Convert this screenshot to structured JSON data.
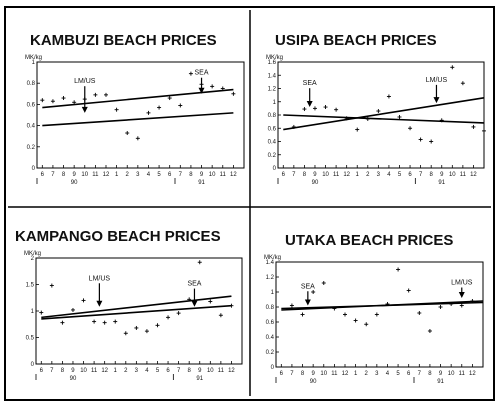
{
  "chart_data": [
    {
      "type": "scatter",
      "title": "KAMBUZI BEACH PRICES",
      "ylabel": "MK/kg",
      "ylim": [
        0,
        1
      ],
      "y_ticks": [
        "0",
        "0.2",
        "0.4",
        "0.6",
        "0.8",
        "1"
      ],
      "x_ticks": [
        "6",
        "7",
        "8",
        "9",
        "10",
        "11",
        "12",
        "1",
        "2",
        "3",
        "4",
        "5",
        "6",
        "7",
        "8",
        "9",
        "10",
        "11",
        "12"
      ],
      "years": [
        {
          "label": "90",
          "x": 9
        },
        {
          "label": "91",
          "x": 21
        }
      ],
      "year_dividers": [
        1,
        13
      ],
      "points": [
        [
          6,
          0.64
        ],
        [
          7,
          0.63
        ],
        [
          8,
          0.66
        ],
        [
          9,
          0.62
        ],
        [
          10,
          0.65
        ],
        [
          11,
          0.69
        ],
        [
          12,
          0.69
        ],
        [
          13,
          0.55
        ],
        [
          14,
          0.33
        ],
        [
          15,
          0.28
        ],
        [
          16,
          0.52
        ],
        [
          17,
          0.57
        ],
        [
          18,
          0.66
        ],
        [
          19,
          0.59
        ],
        [
          20,
          0.89
        ],
        [
          21,
          0.79
        ],
        [
          22,
          0.77
        ],
        [
          23,
          0.75
        ],
        [
          24,
          0.7
        ]
      ],
      "trend_lines": [
        {
          "x": [
            6,
            24
          ],
          "y": [
            0.57,
            0.74
          ]
        },
        {
          "x": [
            6,
            24
          ],
          "y": [
            0.4,
            0.52
          ]
        }
      ],
      "annotations": [
        {
          "text": "LM/US",
          "x": 10,
          "y_text": 0.8,
          "y_tip": 0.52
        },
        {
          "text": "SEA",
          "x": 21,
          "y_text": 0.88,
          "y_tip": 0.7
        }
      ]
    },
    {
      "type": "scatter",
      "title": "USIPA BEACH PRICES",
      "ylabel": "MK/kg",
      "ylim": [
        0,
        1.6
      ],
      "y_ticks": [
        "0",
        "0.2",
        "0.4",
        "0.6",
        "0.8",
        "1",
        "1.2",
        "1.4",
        "1.6"
      ],
      "x_ticks": [
        "6",
        "7",
        "8",
        "9",
        "10",
        "11",
        "12",
        "1",
        "2",
        "3",
        "4",
        "5",
        "6",
        "7",
        "8",
        "9",
        "10",
        "11",
        "12"
      ],
      "years": [
        {
          "label": "90",
          "x": 9
        },
        {
          "label": "91",
          "x": 21
        }
      ],
      "year_dividers": [
        1,
        13
      ],
      "points": [
        [
          7,
          0.62
        ],
        [
          8,
          0.89
        ],
        [
          9,
          0.9
        ],
        [
          10,
          0.92
        ],
        [
          11,
          0.88
        ],
        [
          12,
          0.75
        ],
        [
          13,
          0.58
        ],
        [
          14,
          0.74
        ],
        [
          15,
          0.86
        ],
        [
          16,
          1.08
        ],
        [
          17,
          0.77
        ],
        [
          18,
          0.6
        ],
        [
          19,
          0.43
        ],
        [
          20,
          0.4
        ],
        [
          21,
          0.72
        ],
        [
          22,
          1.52
        ],
        [
          23,
          1.28
        ],
        [
          24,
          0.62
        ],
        [
          25,
          0.56
        ]
      ],
      "trend_lines": [
        {
          "x": [
            6,
            25
          ],
          "y": [
            0.58,
            1.06
          ]
        },
        {
          "x": [
            6,
            25
          ],
          "y": [
            0.8,
            0.68
          ]
        }
      ],
      "annotations": [
        {
          "text": "SEA",
          "x": 8.5,
          "y_text": 1.25,
          "y_tip": 0.92
        },
        {
          "text": "LM/US",
          "x": 20.5,
          "y_text": 1.3,
          "y_tip": 0.98
        }
      ]
    },
    {
      "type": "scatter",
      "title": "KAMPANGO BEACH PRICES",
      "ylabel": "MK/kg",
      "ylim": [
        0,
        2
      ],
      "y_ticks": [
        "0",
        "0.5",
        "1",
        "1.5",
        "2"
      ],
      "x_ticks": [
        "6",
        "7",
        "8",
        "9",
        "10",
        "11",
        "12",
        "1",
        "2",
        "3",
        "4",
        "5",
        "6",
        "7",
        "8",
        "9",
        "10",
        "11",
        "12"
      ],
      "years": [
        {
          "label": "90",
          "x": 9
        },
        {
          "label": "91",
          "x": 21
        }
      ],
      "year_dividers": [
        1,
        13
      ],
      "points": [
        [
          6,
          0.97
        ],
        [
          7,
          1.48
        ],
        [
          8,
          0.78
        ],
        [
          9,
          1.02
        ],
        [
          10,
          1.2
        ],
        [
          11,
          0.8
        ],
        [
          12,
          0.78
        ],
        [
          13,
          0.8
        ],
        [
          14,
          0.58
        ],
        [
          15,
          0.68
        ],
        [
          16,
          0.62
        ],
        [
          17,
          0.73
        ],
        [
          18,
          0.88
        ],
        [
          19,
          0.96
        ],
        [
          20,
          1.22
        ],
        [
          21,
          1.92
        ],
        [
          22,
          1.18
        ],
        [
          23,
          0.92
        ],
        [
          24,
          1.1
        ]
      ],
      "trend_lines": [
        {
          "x": [
            6,
            24
          ],
          "y": [
            0.88,
            1.28
          ]
        },
        {
          "x": [
            6,
            24
          ],
          "y": [
            0.85,
            1.1
          ]
        }
      ],
      "annotations": [
        {
          "text": "LM/US",
          "x": 11.5,
          "y_text": 1.58,
          "y_tip": 1.08
        },
        {
          "text": "SEA",
          "x": 20.5,
          "y_text": 1.48,
          "y_tip": 1.08
        }
      ]
    },
    {
      "type": "scatter",
      "title": "UTAKA BEACH PRICES",
      "ylabel": "MK/kg",
      "ylim": [
        0,
        1.4
      ],
      "y_ticks": [
        "0",
        "0.2",
        "0.4",
        "0.6",
        "0.8",
        "1",
        "1.2",
        "1.4"
      ],
      "x_ticks": [
        "6",
        "7",
        "8",
        "9",
        "10",
        "11",
        "12",
        "1",
        "2",
        "3",
        "4",
        "5",
        "6",
        "7",
        "8",
        "9",
        "10",
        "11",
        "12"
      ],
      "years": [
        {
          "label": "90",
          "x": 9
        },
        {
          "label": "91",
          "x": 21
        }
      ],
      "year_dividers": [
        1,
        13
      ],
      "points": [
        [
          7,
          0.82
        ],
        [
          8,
          0.7
        ],
        [
          9,
          1.0
        ],
        [
          10,
          1.12
        ],
        [
          11,
          0.78
        ],
        [
          12,
          0.7
        ],
        [
          13,
          0.62
        ],
        [
          14,
          0.57
        ],
        [
          15,
          0.7
        ],
        [
          16,
          0.84
        ],
        [
          17,
          1.3
        ],
        [
          18,
          1.02
        ],
        [
          19,
          0.72
        ],
        [
          20,
          0.48
        ],
        [
          21,
          0.8
        ],
        [
          22,
          0.84
        ],
        [
          23,
          0.82
        ],
        [
          24,
          0.88
        ]
      ],
      "trend_lines": [
        {
          "x": [
            6,
            25
          ],
          "y": [
            0.76,
            0.88
          ]
        },
        {
          "x": [
            6,
            25
          ],
          "y": [
            0.78,
            0.86
          ]
        }
      ],
      "annotations": [
        {
          "text": "SEA",
          "x": 8.5,
          "y_text": 1.05,
          "y_tip": 0.82
        },
        {
          "text": "LM/US",
          "x": 23,
          "y_text": 1.1,
          "y_tip": 0.92
        }
      ]
    }
  ]
}
